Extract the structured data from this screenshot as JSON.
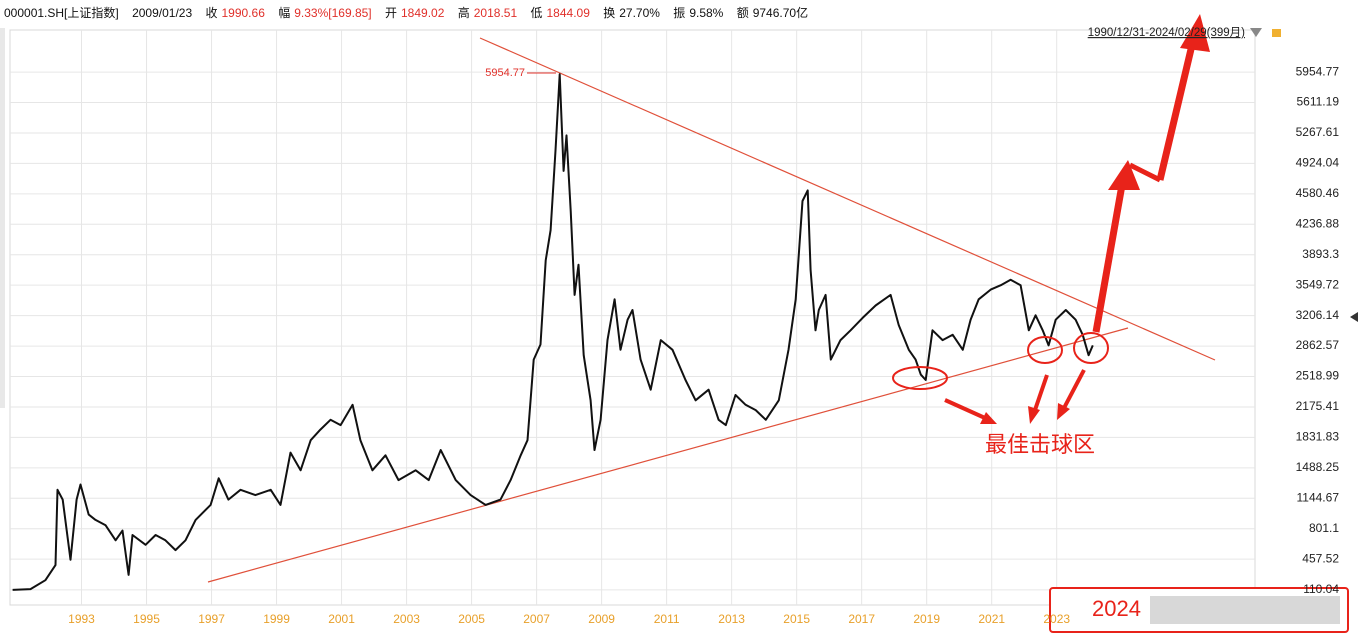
{
  "header": {
    "code": "000001.SH[上证指数]",
    "date": "2009/01/23",
    "close_label": "收",
    "close": "1990.66",
    "change_label": "幅",
    "change": "9.33%[169.85]",
    "open_label": "开",
    "open": "1849.02",
    "high_label": "高",
    "high": "2018.51",
    "low_label": "低",
    "low": "1844.09",
    "turnover_label": "换",
    "turnover": "27.70%",
    "amplitude_label": "振",
    "amplitude": "9.58%",
    "amount_label": "额",
    "amount": "9746.70亿",
    "range": "1990/12/31-2024/02/29(399月)"
  },
  "chart_data": {
    "type": "line",
    "color": "#111111",
    "grid": true,
    "x": [
      1990.88,
      1991.43,
      1991.89,
      1992.2,
      1992.26,
      1992.42,
      1992.66,
      1992.85,
      1992.97,
      1993.22,
      1993.43,
      1993.74,
      1994.05,
      1994.26,
      1994.45,
      1994.57,
      1994.97,
      1995.28,
      1995.58,
      1995.89,
      1996.2,
      1996.51,
      1996.97,
      1997.22,
      1997.52,
      1997.89,
      1998.35,
      1998.82,
      1999.12,
      1999.43,
      1999.74,
      2000.05,
      2000.35,
      2000.66,
      2000.97,
      2001.34,
      2001.58,
      2001.95,
      2002.35,
      2002.75,
      2003.28,
      2003.68,
      2004.05,
      2004.51,
      2004.97,
      2005.43,
      2005.89,
      2006.2,
      2006.51,
      2006.72,
      2006.91,
      2007.12,
      2007.28,
      2007.43,
      2007.58,
      2007.71,
      2007.83,
      2007.92,
      2008.05,
      2008.17,
      2008.29,
      2008.45,
      2008.66,
      2008.78,
      2008.97,
      2009.18,
      2009.4,
      2009.58,
      2009.8,
      2009.95,
      2010.2,
      2010.51,
      2010.82,
      2011.18,
      2011.58,
      2011.89,
      2012.29,
      2012.6,
      2012.82,
      2013.12,
      2013.43,
      2013.74,
      2014.05,
      2014.45,
      2014.75,
      2014.97,
      2015.18,
      2015.34,
      2015.43,
      2015.58,
      2015.68,
      2015.89,
      2016.05,
      2016.35,
      2016.66,
      2017.03,
      2017.43,
      2017.89,
      2018.14,
      2018.45,
      2018.66,
      2018.82,
      2018.97,
      2019.18,
      2019.49,
      2019.8,
      2020.11,
      2020.35,
      2020.6,
      2020.97,
      2021.28,
      2021.58,
      2021.89,
      2022.14,
      2022.35,
      2022.57,
      2022.75,
      2022.97,
      2023.28,
      2023.58,
      2023.8,
      2023.98,
      2024.11
    ],
    "values": [
      110,
      120,
      220,
      390,
      1240,
      1130,
      450,
      1130,
      1300,
      960,
      900,
      840,
      670,
      780,
      280,
      730,
      620,
      730,
      670,
      560,
      670,
      900,
      1070,
      1370,
      1130,
      1240,
      1180,
      1240,
      1070,
      1660,
      1460,
      1800,
      1920,
      2030,
      1970,
      2200,
      1800,
      1460,
      1630,
      1350,
      1460,
      1350,
      1690,
      1350,
      1180,
      1070,
      1130,
      1350,
      1630,
      1800,
      2710,
      2880,
      3830,
      4170,
      5070,
      5930,
      4840,
      5240,
      4390,
      3440,
      3780,
      2760,
      2250,
      1690,
      2030,
      2930,
      3390,
      2820,
      3160,
      3270,
      2710,
      2370,
      2930,
      2820,
      2480,
      2250,
      2370,
      2030,
      1970,
      2310,
      2200,
      2140,
      2030,
      2250,
      2820,
      3390,
      4500,
      4620,
      3720,
      3040,
      3270,
      3440,
      2710,
      2930,
      3040,
      3180,
      3320,
      3440,
      3100,
      2820,
      2710,
      2540,
      2480,
      3040,
      2930,
      2990,
      2820,
      3160,
      3390,
      3500,
      3550,
      3610,
      3550,
      3040,
      3210,
      3040,
      2870,
      3160,
      3270,
      3160,
      2990,
      2760,
      2870
    ],
    "xlim": [
      1990.8,
      2029.1
    ],
    "xticks": [
      1993,
      1995,
      1997,
      1999,
      2001,
      2003,
      2005,
      2007,
      2009,
      2011,
      2013,
      2015,
      2017,
      2019,
      2021,
      2023
    ],
    "ylim": [
      -60,
      6430
    ],
    "yticks": [
      110.04,
      457.52,
      801.1,
      1144.67,
      1488.25,
      1831.83,
      2175.41,
      2518.99,
      2862.57,
      3206.14,
      3549.72,
      3893.3,
      4236.88,
      4580.46,
      4924.04,
      5267.61,
      5611.19,
      5954.77
    ],
    "annotations": {
      "peak": "5954.77",
      "zone": "最佳击球区",
      "footer": "2024"
    }
  }
}
